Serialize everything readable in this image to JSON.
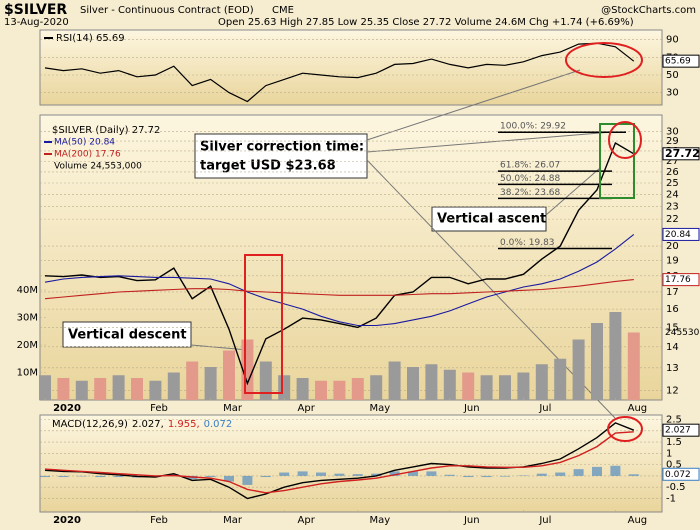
{
  "header": {
    "symbol": "$SILVER",
    "name": "Silver - Continuous Contract (EOD)",
    "exchange": "CME",
    "date": "13-Aug-2020",
    "quote": "Open 25.63 High 27.85 Low 25.35 Close 27.72 Volume 24.6M Chg +1.74 (+6.69%)",
    "credit": "@StockCharts.com"
  },
  "chart_data": [
    {
      "type": "line",
      "legend": "RSI(14) 65.69",
      "series": [
        {
          "name": "RSI(14)",
          "color": "#000000",
          "last_label": "65.69",
          "values": [
            58,
            55,
            57,
            52,
            55,
            48,
            50,
            60,
            38,
            45,
            30,
            20,
            38,
            45,
            52,
            50,
            48,
            47,
            52,
            62,
            63,
            68,
            62,
            58,
            62,
            61,
            65,
            72,
            76,
            85,
            86,
            82,
            65.69
          ]
        }
      ],
      "ylim": [
        16,
        101
      ],
      "yticks": [
        30,
        50,
        70,
        90
      ]
    },
    {
      "type": "stock",
      "legend": "$SILVER (Daily) 27.72",
      "log_scale": true,
      "categories": [
        "2020",
        null,
        null,
        null,
        null,
        "Feb",
        null,
        null,
        null,
        "Mar",
        null,
        null,
        null,
        "Apr",
        null,
        null,
        null,
        "May",
        null,
        null,
        null,
        null,
        "Jun",
        null,
        null,
        null,
        "Jul",
        null,
        null,
        null,
        null,
        "Aug",
        null
      ],
      "series": [
        {
          "name": "Close",
          "color": "#000000",
          "last_label": "27.72",
          "values": [
            18.0,
            17.95,
            18.05,
            17.9,
            17.95,
            17.7,
            17.75,
            18.5,
            16.6,
            17.35,
            14.9,
            12.3,
            14.4,
            14.9,
            15.5,
            15.4,
            15.2,
            15.0,
            15.5,
            16.8,
            17.0,
            17.9,
            17.9,
            17.5,
            17.8,
            17.8,
            18.1,
            19.1,
            20.0,
            22.7,
            24.4,
            28.8,
            27.72
          ]
        },
        {
          "name": "MA(50) 20.84",
          "color": "#1a1aa0",
          "last_label": "20.84",
          "values": [
            17.6,
            17.8,
            17.9,
            17.95,
            18.0,
            17.95,
            17.9,
            17.9,
            17.85,
            17.8,
            17.5,
            17.0,
            16.6,
            16.3,
            16.0,
            15.6,
            15.3,
            15.1,
            15.1,
            15.2,
            15.4,
            15.6,
            15.9,
            16.3,
            16.7,
            17.0,
            17.3,
            17.5,
            17.8,
            18.3,
            18.9,
            19.8,
            20.84
          ]
        },
        {
          "name": "MA(200) 17.76",
          "color": "#c0201f",
          "last_label": "17.76",
          "values": [
            16.6,
            16.7,
            16.8,
            16.9,
            17.0,
            17.05,
            17.1,
            17.15,
            17.2,
            17.2,
            17.15,
            17.05,
            17.0,
            16.95,
            16.9,
            16.85,
            16.8,
            16.8,
            16.8,
            16.8,
            16.85,
            16.9,
            16.9,
            16.95,
            17.0,
            17.05,
            17.1,
            17.15,
            17.25,
            17.35,
            17.5,
            17.65,
            17.76
          ]
        }
      ],
      "volume": {
        "name": "Volume 24,553,000",
        "up_color": "#9a9a9a",
        "down_color": "#e39a8a",
        "last_label": "24553000",
        "values": [
          9,
          8,
          7,
          8,
          9,
          8,
          7,
          10,
          14,
          12,
          18,
          22,
          14,
          9,
          8,
          7,
          7,
          8,
          9,
          14,
          12,
          13,
          11,
          10,
          9,
          9,
          10,
          13,
          15,
          22,
          28,
          32,
          24.553
        ],
        "ylim": [
          0,
          40
        ],
        "yticks": [
          {
            "value": 10,
            "label": "10M"
          },
          {
            "value": 20,
            "label": "20M"
          },
          {
            "value": 30,
            "label": "30M"
          },
          {
            "value": 40,
            "label": "40M"
          }
        ]
      },
      "ylim": [
        11.6,
        31.8
      ],
      "yticks": [
        12,
        13,
        14,
        15,
        16,
        17,
        18,
        19,
        20,
        22,
        23,
        24,
        25,
        26,
        27,
        28,
        29,
        30
      ],
      "fib": [
        {
          "label": "100.0%: 29.92",
          "value": 29.92
        },
        {
          "label": "61.8%: 26.07",
          "value": 26.07
        },
        {
          "label": "50.0%: 24.88",
          "value": 24.88
        },
        {
          "label": "38.2%: 23.68",
          "value": 23.68
        },
        {
          "label": "0.0%: 19.83",
          "value": 19.83
        }
      ],
      "annotations": [
        "Silver correction time:",
        "target USD $23.68",
        "Vertical ascent",
        "Vertical descent"
      ]
    },
    {
      "type": "macd",
      "legend": "MACD(12,26,9)",
      "categories": [
        "2020",
        null,
        null,
        null,
        null,
        "Feb",
        null,
        null,
        null,
        "Mar",
        null,
        null,
        null,
        "Apr",
        null,
        null,
        null,
        "May",
        null,
        null,
        null,
        null,
        "Jun",
        null,
        null,
        null,
        "Jul",
        null,
        null,
        null,
        null,
        "Aug",
        null
      ],
      "series": [
        {
          "name": "2.027,",
          "color": "#000000",
          "last_label": "2.027",
          "values": [
            0.25,
            0.2,
            0.18,
            0.1,
            0.05,
            -0.02,
            -0.05,
            0.1,
            -0.2,
            -0.15,
            -0.5,
            -1.0,
            -0.8,
            -0.5,
            -0.3,
            -0.2,
            -0.15,
            -0.1,
            0.0,
            0.25,
            0.4,
            0.55,
            0.5,
            0.4,
            0.35,
            0.35,
            0.4,
            0.55,
            0.75,
            1.2,
            1.7,
            2.35,
            2.027
          ]
        },
        {
          "name": "1.955,",
          "color": "#d02020",
          "values": [
            0.3,
            0.25,
            0.2,
            0.15,
            0.1,
            0.05,
            0.0,
            0.02,
            -0.05,
            -0.1,
            -0.25,
            -0.6,
            -0.75,
            -0.65,
            -0.5,
            -0.35,
            -0.25,
            -0.18,
            -0.1,
            0.05,
            0.2,
            0.35,
            0.45,
            0.45,
            0.4,
            0.38,
            0.38,
            0.45,
            0.6,
            0.9,
            1.3,
            1.9,
            1.955
          ]
        },
        {
          "name": "0.072",
          "color": "#3a7fc4",
          "last_label": "0.072",
          "values": [
            -0.05,
            -0.05,
            -0.02,
            -0.05,
            -0.05,
            -0.07,
            -0.05,
            0.08,
            -0.15,
            -0.05,
            -0.25,
            -0.4,
            -0.05,
            0.15,
            0.2,
            0.15,
            0.1,
            0.08,
            0.1,
            0.2,
            0.2,
            0.2,
            0.05,
            -0.05,
            -0.05,
            -0.03,
            0.02,
            0.1,
            0.15,
            0.3,
            0.4,
            0.45,
            0.072
          ]
        }
      ],
      "ylim": [
        -1.6,
        2.7
      ],
      "yticks": [
        -1,
        -0.5,
        0,
        0.5,
        1,
        1.5,
        2,
        2.5
      ]
    }
  ]
}
